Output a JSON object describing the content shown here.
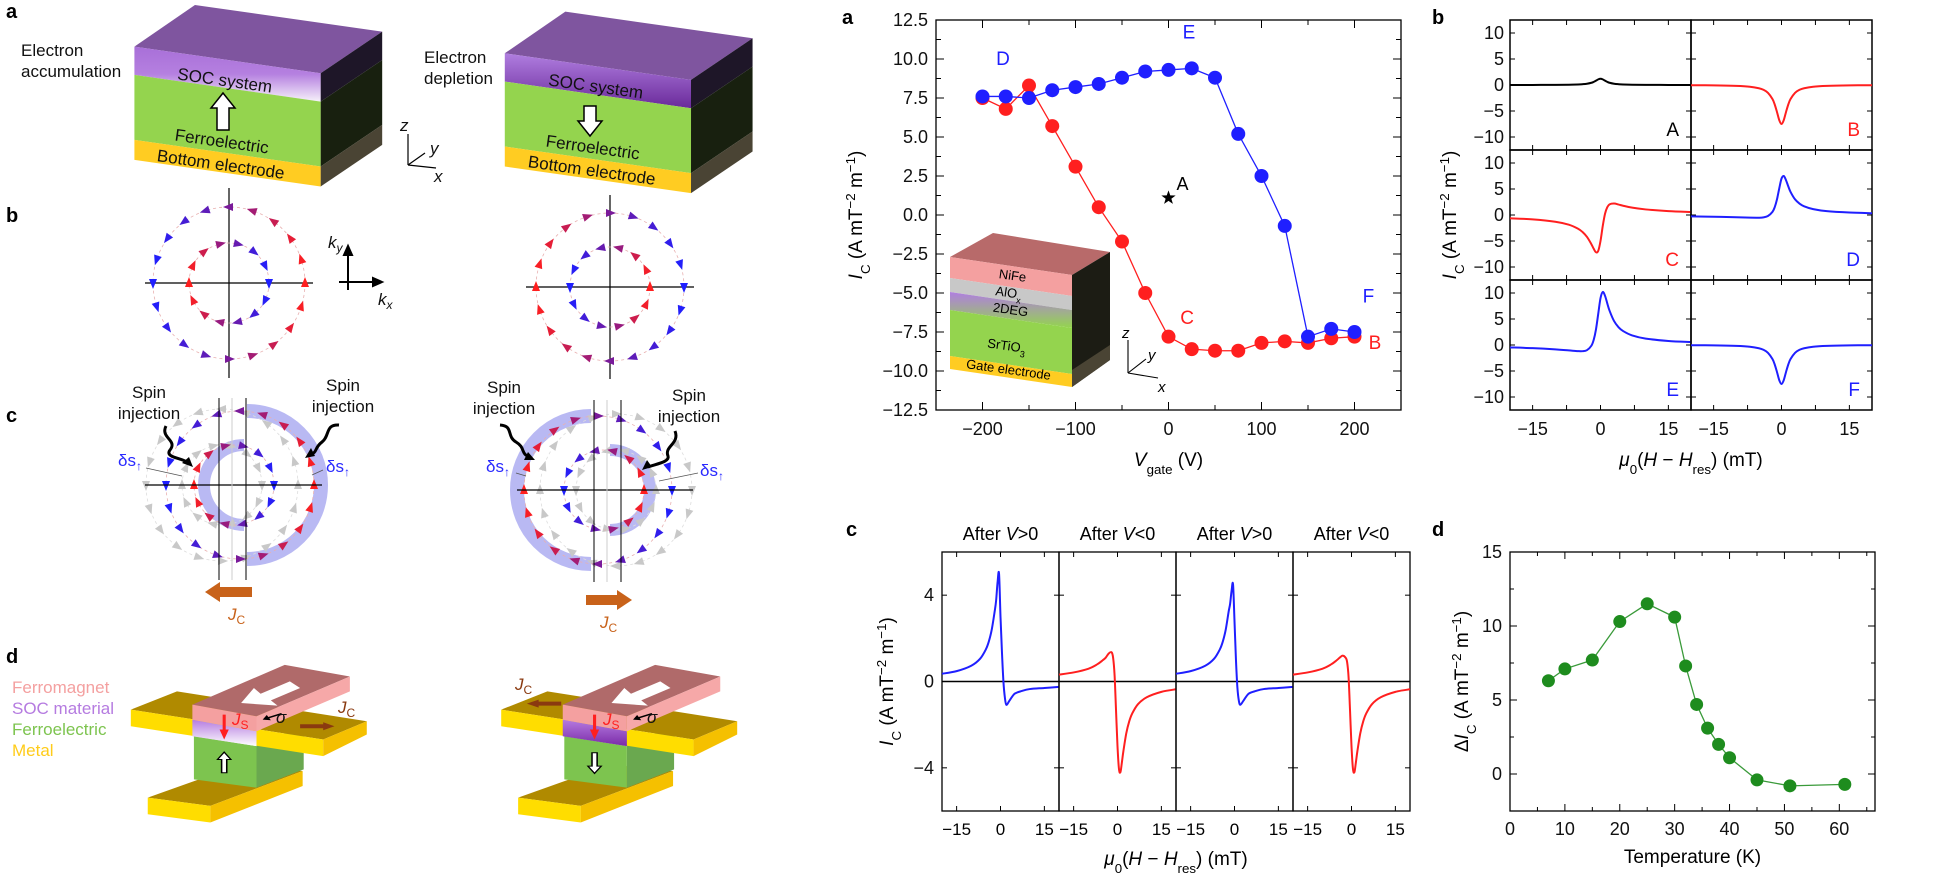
{
  "figure_left": {
    "panel_labels": [
      "a",
      "b",
      "c",
      "d"
    ],
    "a": {
      "left_caption": [
        "Electron",
        "accumulation"
      ],
      "right_caption": [
        "Electron",
        "depletion"
      ],
      "soc": "SOC system",
      "fe": "Ferroelectric",
      "bottom": "Bottom electrode",
      "axes": {
        "z": "z",
        "y": "y",
        "x": "x"
      }
    },
    "b": {
      "ky": "k",
      "ky_sub": "y",
      "kx": "k",
      "kx_sub": "x"
    },
    "c": {
      "spin": "Spin",
      "injection": "injection",
      "ds": "δs",
      "ds_sub": "↑",
      "jc": "J",
      "jc_sub": "C"
    },
    "d": {
      "legend": [
        {
          "label": "Ferromagnet",
          "color": "#f4a0a0"
        },
        {
          "label": "SOC material",
          "color": "#b57be0"
        },
        {
          "label": "Ferroelectric",
          "color": "#7dc44f"
        },
        {
          "label": "Metal",
          "color": "#ffcc1a"
        }
      ],
      "js": "J",
      "js_sub": "S",
      "sigma": "σ",
      "jc": "J",
      "jc_sub": "C"
    }
  },
  "colors": {
    "blue": "#1f1fff",
    "red": "#ff1f1f",
    "purple": "#7a1a9a",
    "gray": "#c8c8c8",
    "green_marker": "#1e8c1e",
    "orange_arrow": "#c8621a"
  },
  "chart_data": [
    {
      "panel": "a",
      "type": "line",
      "xlim": [
        -250,
        250
      ],
      "ylim": [
        -12.5,
        12.5
      ],
      "xticks": [
        -200,
        -100,
        0,
        100,
        200
      ],
      "xtick_labels": [
        "−200",
        "−100",
        "0",
        "100",
        "200"
      ],
      "yticks": [
        12.5,
        10,
        7.5,
        5,
        2.5,
        0,
        -2.5,
        -5,
        -7.5,
        -10,
        -12.5
      ],
      "ytick_labels": [
        "12.5",
        "10.0",
        "7.5",
        "5.0",
        "2.5",
        "0.0",
        "−2.5",
        "−5.0",
        "−7.5",
        "−10.0",
        "−12.5"
      ],
      "xlabel": [
        {
          "t": "V",
          "s": "i"
        },
        {
          "t": "gate",
          "s": "sub"
        },
        {
          "t": " (V)",
          "s": ""
        }
      ],
      "ylabel": [
        {
          "t": "I",
          "s": "i"
        },
        {
          "t": "C",
          "s": "sub"
        },
        {
          "t": " (A mT",
          "s": ""
        },
        {
          "t": "−2",
          "s": "sup"
        },
        {
          "t": " m",
          "s": ""
        },
        {
          "t": "−1",
          "s": "sup"
        },
        {
          "t": ")",
          "s": ""
        }
      ],
      "series": [
        {
          "color": "#ff1f1f",
          "x": [
            -200,
            -175,
            -150,
            -125,
            -100,
            -75,
            -50,
            -25,
            0,
            25,
            50,
            75,
            100,
            125,
            150,
            175,
            200
          ],
          "y": [
            7.5,
            6.8,
            8.3,
            5.7,
            3.1,
            0.5,
            -1.7,
            -5.0,
            -7.8,
            -8.6,
            -8.7,
            -8.7,
            -8.2,
            -8.1,
            -8.2,
            -7.9,
            -7.8
          ]
        },
        {
          "color": "#1f1fff",
          "x": [
            -200,
            -175,
            -150,
            -125,
            -100,
            -75,
            -50,
            -25,
            0,
            25,
            50,
            75,
            100,
            125,
            150,
            175,
            200
          ],
          "y": [
            7.6,
            7.6,
            7.5,
            8.0,
            8.2,
            8.4,
            8.8,
            9.2,
            9.3,
            9.4,
            8.8,
            5.2,
            2.5,
            -0.7,
            -7.8,
            -7.3,
            -7.5
          ]
        }
      ],
      "star": {
        "x": 0,
        "y": 1.1,
        "label": "A"
      },
      "annotations": [
        {
          "text": "D",
          "x": -178,
          "y": 9.6,
          "color": "#1f1fff"
        },
        {
          "text": "E",
          "x": 22,
          "y": 11.3,
          "color": "#1f1fff"
        },
        {
          "text": "C",
          "x": 20,
          "y": -7.0,
          "color": "#ff1f1f"
        },
        {
          "text": "F",
          "x": 215,
          "y": -5.6,
          "color": "#1f1fff"
        },
        {
          "text": "B",
          "x": 222,
          "y": -8.6,
          "color": "#ff1f1f"
        }
      ],
      "inset": {
        "layers": [
          "NiFe",
          "AlO",
          "2DEG",
          "SrTiO",
          "Gate electrode"
        ],
        "alo_sub": "x",
        "sto_sub": "3",
        "axes": {
          "z": "z",
          "y": "y",
          "x": "x"
        }
      }
    },
    {
      "panel": "b",
      "type": "line",
      "layout": "3 rows x 2 columns",
      "xlim": [
        -20,
        20
      ],
      "ylim": [
        -12.5,
        12.5
      ],
      "xticks": [
        -15,
        0,
        15
      ],
      "xtick_labels": [
        "−15",
        "0",
        "15"
      ],
      "yticks": [
        10,
        5,
        0,
        -5,
        -10
      ],
      "ytick_labels": [
        "10",
        "5",
        "0",
        "−5",
        "−10"
      ],
      "xlabel": [
        {
          "t": "μ",
          "s": "i"
        },
        {
          "t": "0",
          "s": "sub"
        },
        {
          "t": "(",
          "s": ""
        },
        {
          "t": "H",
          "s": "i"
        },
        {
          "t": " − ",
          "s": ""
        },
        {
          "t": "H",
          "s": "i"
        },
        {
          "t": "res",
          "s": "sub"
        },
        {
          "t": ") (mT)",
          "s": ""
        }
      ],
      "ylabel": [
        {
          "t": "I",
          "s": "i"
        },
        {
          "t": "C",
          "s": "sub"
        },
        {
          "t": " (A mT",
          "s": ""
        },
        {
          "t": "−2",
          "s": "sup"
        },
        {
          "t": " m",
          "s": ""
        },
        {
          "t": "−1",
          "s": "sup"
        },
        {
          "t": ")",
          "s": ""
        }
      ],
      "x": [
        -20,
        -15,
        -10,
        -7,
        -5,
        -4,
        -3,
        -2,
        -1.5,
        -1,
        -0.5,
        0,
        0.5,
        1,
        1.5,
        2,
        3,
        4,
        5,
        7,
        10,
        15,
        20
      ],
      "panels": [
        {
          "label": "A",
          "color": "#000000",
          "y": [
            0.01,
            0.01,
            0.03,
            0.05,
            0.1,
            0.15,
            0.24,
            0.43,
            0.6,
            0.83,
            1.08,
            1.2,
            1.08,
            0.83,
            0.6,
            0.43,
            0.24,
            0.15,
            0.1,
            0.05,
            0.03,
            0.01,
            0.01
          ]
        },
        {
          "label": "B",
          "color": "#ff1f1f",
          "y": [
            -0.04,
            -0.07,
            -0.17,
            -0.33,
            -0.62,
            -0.92,
            -1.5,
            -2.7,
            -3.75,
            -5.19,
            -6.75,
            -7.5,
            -6.75,
            -5.19,
            -3.75,
            -2.7,
            -1.5,
            -0.92,
            -0.62,
            -0.33,
            -0.17,
            -0.07,
            -0.04
          ]
        },
        {
          "label": "C",
          "color": "#ff1f1f",
          "y": [
            -0.63,
            -0.84,
            -1.29,
            -1.86,
            -2.62,
            -3.25,
            -4.2,
            -5.64,
            -6.5,
            -7.16,
            -6.9,
            -5.0,
            -2.1,
            0.24,
            1.5,
            2.04,
            2.2,
            2.01,
            1.78,
            1.42,
            1.07,
            0.74,
            0.57
          ]
        },
        {
          "label": "D",
          "color": "#1f1fff",
          "y": [
            -0.26,
            -0.33,
            -0.44,
            -0.51,
            -0.52,
            -0.46,
            -0.2,
            0.6,
            1.5,
            3.0,
            5.1,
            7.0,
            7.5,
            6.69,
            5.5,
            4.44,
            3.0,
            2.18,
            1.68,
            1.13,
            0.74,
            0.47,
            0.34
          ]
        },
        {
          "label": "E",
          "color": "#1f1fff",
          "y": [
            -0.47,
            -0.6,
            -0.83,
            -1.04,
            -1.18,
            -1.19,
            -1.0,
            -0.12,
            1.0,
            3.0,
            6.0,
            9.0,
            10.2,
            9.46,
            8.0,
            6.6,
            4.6,
            3.41,
            2.68,
            1.84,
            1.23,
            0.78,
            0.57
          ]
        },
        {
          "label": "F",
          "color": "#1f1fff",
          "y": [
            -0.04,
            -0.07,
            -0.17,
            -0.33,
            -0.62,
            -0.92,
            -1.5,
            -2.7,
            -3.75,
            -5.19,
            -6.75,
            -7.5,
            -6.75,
            -5.19,
            -3.75,
            -2.7,
            -1.5,
            -0.92,
            -0.62,
            -0.33,
            -0.17,
            -0.07,
            -0.04
          ]
        }
      ]
    },
    {
      "panel": "c",
      "type": "line",
      "layout": "4 columns",
      "xlim": [
        -20,
        20
      ],
      "ylim": [
        -6,
        6
      ],
      "xticks": [
        -15,
        0,
        15
      ],
      "xtick_labels": [
        "−15",
        "0",
        "15"
      ],
      "yticks": [
        4,
        0,
        -4
      ],
      "ytick_labels": [
        "4",
        "0",
        "−4"
      ],
      "xlabel": [
        {
          "t": "μ",
          "s": "i"
        },
        {
          "t": "0",
          "s": "sub"
        },
        {
          "t": "(",
          "s": ""
        },
        {
          "t": "H",
          "s": "i"
        },
        {
          "t": " − ",
          "s": ""
        },
        {
          "t": "H",
          "s": "i"
        },
        {
          "t": "res",
          "s": "sub"
        },
        {
          "t": ") (mT)",
          "s": ""
        }
      ],
      "ylabel": [
        {
          "t": "I",
          "s": "i"
        },
        {
          "t": "C",
          "s": "sub"
        },
        {
          "t": " (A mT",
          "s": ""
        },
        {
          "t": "−2",
          "s": "sup"
        },
        {
          "t": " m",
          "s": ""
        },
        {
          "t": "−1",
          "s": "sup"
        },
        {
          "t": ")",
          "s": ""
        }
      ],
      "x": [
        -20,
        -15,
        -10,
        -7,
        -5,
        -4,
        -3,
        -2,
        -1.5,
        -1,
        -0.5,
        0,
        0.5,
        1,
        1.5,
        2,
        3,
        4,
        5,
        7,
        10,
        15,
        20
      ],
      "panels": [
        {
          "title": [
            {
              "t": "After ",
              "s": ""
            },
            {
              "t": "V",
              "s": "i"
            },
            {
              "t": ">0",
              "s": ""
            }
          ],
          "color": "#1f1fff",
          "y": [
            0.36,
            0.48,
            0.73,
            1.05,
            1.49,
            1.85,
            2.4,
            3.24,
            3.75,
            4.6,
            5.0,
            3.0,
            1.35,
            0.0,
            -0.75,
            -1.08,
            -0.9,
            -0.7,
            -0.55,
            -0.45,
            -0.35,
            -0.3,
            -0.25
          ]
        },
        {
          "title": [
            {
              "t": "After ",
              "s": ""
            },
            {
              "t": "V",
              "s": "i"
            },
            {
              "t": "<0",
              "s": ""
            }
          ],
          "color": "#ff1f1f",
          "y": [
            0.32,
            0.42,
            0.59,
            0.79,
            0.99,
            1.11,
            1.3,
            1.35,
            1.1,
            0.3,
            -1.35,
            -3.0,
            -4.05,
            -4.2,
            -3.75,
            -3.24,
            -2.4,
            -1.85,
            -1.49,
            -1.05,
            -0.73,
            -0.48,
            -0.36
          ]
        },
        {
          "title": [
            {
              "t": "After ",
              "s": ""
            },
            {
              "t": "V",
              "s": "i"
            },
            {
              "t": ">0",
              "s": ""
            }
          ],
          "color": "#1f1fff",
          "y": [
            0.36,
            0.48,
            0.73,
            1.05,
            1.49,
            1.85,
            2.4,
            3.24,
            3.6,
            4.2,
            4.5,
            2.8,
            1.0,
            -0.3,
            -0.9,
            -1.08,
            -0.9,
            -0.7,
            -0.55,
            -0.45,
            -0.35,
            -0.3,
            -0.25
          ]
        },
        {
          "title": [
            {
              "t": "After ",
              "s": ""
            },
            {
              "t": "V",
              "s": "i"
            },
            {
              "t": "<0",
              "s": ""
            }
          ],
          "color": "#ff1f1f",
          "y": [
            0.32,
            0.42,
            0.59,
            0.79,
            0.99,
            1.11,
            1.2,
            1.1,
            0.9,
            0.2,
            -1.35,
            -3.0,
            -4.05,
            -4.2,
            -3.75,
            -3.24,
            -2.4,
            -1.85,
            -1.49,
            -1.05,
            -0.73,
            -0.48,
            -0.36
          ]
        }
      ]
    },
    {
      "panel": "d",
      "type": "line",
      "xlim": [
        0,
        66.5
      ],
      "ylim": [
        -2.5,
        15
      ],
      "xticks": [
        0,
        10,
        20,
        30,
        40,
        50,
        60
      ],
      "xtick_labels": [
        "0",
        "10",
        "20",
        "30",
        "40",
        "50",
        "60"
      ],
      "yticks": [
        0,
        5,
        10,
        15
      ],
      "ytick_labels": [
        "0",
        "5",
        "10",
        "15"
      ],
      "xlabel": [
        {
          "t": "Temperature (K)",
          "s": ""
        }
      ],
      "ylabel": [
        {
          "t": "Δ",
          "s": ""
        },
        {
          "t": "I",
          "s": "i"
        },
        {
          "t": "C",
          "s": "sub"
        },
        {
          "t": " (A mT",
          "s": ""
        },
        {
          "t": "−2",
          "s": "sup"
        },
        {
          "t": " m",
          "s": ""
        },
        {
          "t": "−1",
          "s": "sup"
        },
        {
          "t": ")",
          "s": ""
        }
      ],
      "series": [
        {
          "color": "#1e8c1e",
          "x": [
            7,
            10,
            15,
            20,
            25,
            30,
            32,
            34,
            36,
            38,
            40,
            45,
            51,
            61
          ],
          "y": [
            6.3,
            7.1,
            7.7,
            10.3,
            11.5,
            10.6,
            7.3,
            4.7,
            3.1,
            2.0,
            1.1,
            -0.4,
            -0.8,
            -0.7
          ]
        }
      ]
    }
  ]
}
